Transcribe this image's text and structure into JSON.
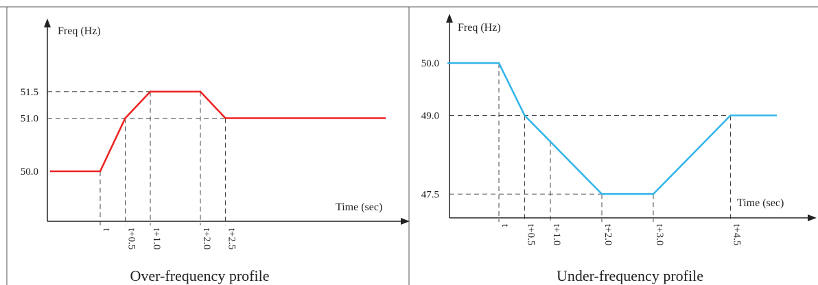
{
  "colors": {
    "over_line": "#ee2222",
    "under_line": "#33b5ea",
    "axis": "#222222",
    "guide": "#444444",
    "frame": "#555555"
  },
  "chart_data": [
    {
      "type": "line",
      "title": "Over-frequency profile",
      "xlabel": "Time (sec)",
      "ylabel": "Freq (Hz)",
      "y_tick_labels": [
        "51.5",
        "51.0",
        "50.0"
      ],
      "x_tick_labels": [
        "t",
        "t+0.5",
        "t+1.0",
        "t+2.0",
        "t+2.5"
      ],
      "x_ticks": [
        0,
        0.5,
        1.0,
        2.0,
        2.5
      ],
      "series": [
        {
          "x": [
            -1.0,
            0.0,
            0.5,
            1.0,
            2.0,
            2.5,
            5.7
          ],
          "y": [
            50.0,
            50.0,
            51.0,
            51.5,
            51.5,
            51.0,
            51.0
          ]
        }
      ],
      "grid": false,
      "legend": "none"
    },
    {
      "type": "line",
      "title": "Under-frequency profile",
      "xlabel": "Time (sec)",
      "ylabel": "Freq (Hz)",
      "y_tick_labels": [
        "50.0",
        "49.0",
        "47.5"
      ],
      "x_tick_labels": [
        "t",
        "t+0.5",
        "t+1.0",
        "t+2.0",
        "t+3.0",
        "t+4.5"
      ],
      "x_ticks": [
        0,
        0.5,
        1.0,
        2.0,
        3.0,
        4.5
      ],
      "series": [
        {
          "x": [
            -1.0,
            0.0,
            0.5,
            2.0,
            3.0,
            4.5,
            5.4
          ],
          "y": [
            50.0,
            50.0,
            49.0,
            47.5,
            47.5,
            49.0,
            49.0
          ]
        }
      ],
      "grid": false,
      "legend": "none"
    }
  ]
}
